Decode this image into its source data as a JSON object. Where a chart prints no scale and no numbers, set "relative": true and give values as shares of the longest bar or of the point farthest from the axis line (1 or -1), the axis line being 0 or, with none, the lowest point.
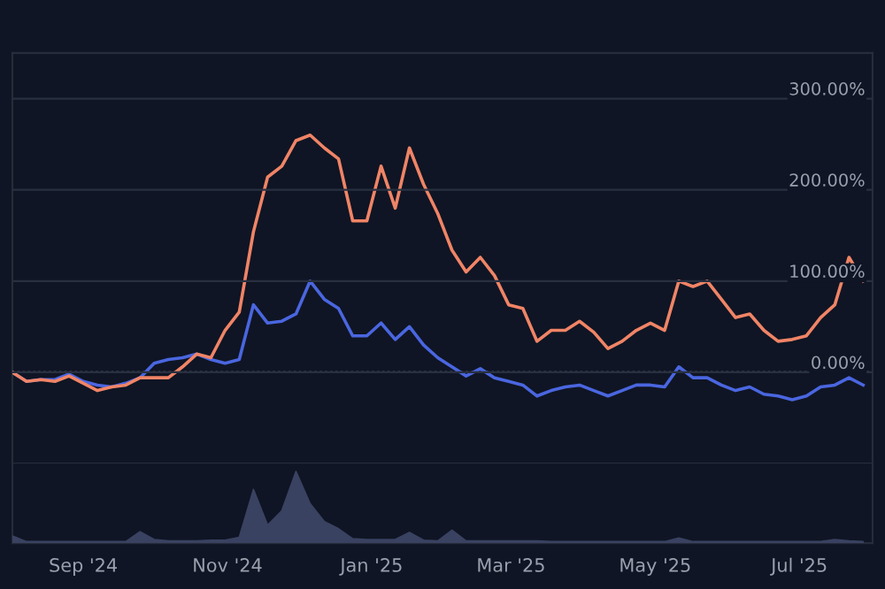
{
  "chart_data": [
    {
      "type": "line",
      "xlim": [
        "2024-08-02",
        "2025-08-01"
      ],
      "ylim": [
        -100,
        350
      ],
      "yticks": [
        {
          "value": 0,
          "label": "0.00%"
        },
        {
          "value": 100,
          "label": "100.00%"
        },
        {
          "value": 200,
          "label": "200.00%"
        },
        {
          "value": 300,
          "label": "300.00%"
        }
      ],
      "tick_labels": "y",
      "grid": "y",
      "ref_lines": [
        {
          "axis": "y",
          "value": 0,
          "label": null,
          "color": "#9aa0ad",
          "line_style": "dotted"
        }
      ],
      "x": [
        "2024-08-02",
        "2024-08-08",
        "2024-08-14",
        "2024-08-20",
        "2024-08-26",
        "2024-09-01",
        "2024-09-07",
        "2024-09-13",
        "2024-09-19",
        "2024-09-25",
        "2024-10-01",
        "2024-10-07",
        "2024-10-13",
        "2024-10-19",
        "2024-10-25",
        "2024-10-31",
        "2024-11-06",
        "2024-11-12",
        "2024-11-18",
        "2024-11-24",
        "2024-11-30",
        "2024-12-06",
        "2024-12-12",
        "2024-12-18",
        "2024-12-24",
        "2024-12-30",
        "2025-01-05",
        "2025-01-11",
        "2025-01-17",
        "2025-01-23",
        "2025-01-29",
        "2025-02-04",
        "2025-02-10",
        "2025-02-16",
        "2025-02-22",
        "2025-02-28",
        "2025-03-06",
        "2025-03-12",
        "2025-03-18",
        "2025-03-24",
        "2025-03-30",
        "2025-04-05",
        "2025-04-11",
        "2025-04-17",
        "2025-04-23",
        "2025-04-29",
        "2025-05-05",
        "2025-05-11",
        "2025-05-17",
        "2025-05-23",
        "2025-05-29",
        "2025-06-04",
        "2025-06-10",
        "2025-06-16",
        "2025-06-22",
        "2025-06-28",
        "2025-07-04",
        "2025-07-10",
        "2025-07-16",
        "2025-07-22",
        "2025-07-28"
      ],
      "series": [
        {
          "color": "#4a66e0",
          "values": [
            0,
            -10,
            -8,
            -8,
            -2,
            -10,
            -14,
            -16,
            -12,
            -6,
            10,
            14,
            16,
            20,
            14,
            10,
            14,
            74,
            54,
            56,
            64,
            100,
            80,
            70,
            40,
            40,
            54,
            36,
            50,
            30,
            16,
            6,
            -4,
            4,
            -6,
            -10,
            -14,
            -26,
            -20,
            -16,
            -14,
            -20,
            -26,
            -20,
            -14,
            -14,
            -16,
            6,
            -6,
            -6,
            -14,
            -20,
            -16,
            -24,
            -26,
            -30,
            -26,
            -16,
            -14,
            -6,
            -14
          ]
        },
        {
          "color": "#f08466",
          "values": [
            0,
            -10,
            -8,
            -10,
            -4,
            -12,
            -20,
            -16,
            -14,
            -6,
            -6,
            -6,
            6,
            20,
            16,
            46,
            66,
            154,
            214,
            226,
            254,
            260,
            246,
            234,
            166,
            166,
            226,
            180,
            246,
            206,
            174,
            134,
            110,
            126,
            106,
            74,
            70,
            34,
            46,
            46,
            56,
            44,
            26,
            34,
            46,
            54,
            46,
            100,
            94,
            100,
            80,
            60,
            64,
            46,
            34,
            36,
            40,
            60,
            74,
            126,
            100
          ]
        }
      ]
    },
    {
      "type": "area",
      "relative": true,
      "tick_labels": "x",
      "grid": false,
      "xlim": [
        "2024-08-02",
        "2025-08-01"
      ],
      "xticks": [
        {
          "value": "2024-09-01",
          "label": "Sep '24"
        },
        {
          "value": "2024-11-01",
          "label": "Nov '24"
        },
        {
          "value": "2025-01-01",
          "label": "Jan '25"
        },
        {
          "value": "2025-03-01",
          "label": "Mar '25"
        },
        {
          "value": "2025-05-01",
          "label": "May '25"
        },
        {
          "value": "2025-07-01",
          "label": "Jul '25"
        }
      ],
      "x": [
        "2024-08-02",
        "2024-08-08",
        "2024-08-14",
        "2024-08-20",
        "2024-08-26",
        "2024-09-01",
        "2024-09-07",
        "2024-09-13",
        "2024-09-19",
        "2024-09-25",
        "2024-10-01",
        "2024-10-07",
        "2024-10-13",
        "2024-10-19",
        "2024-10-25",
        "2024-10-31",
        "2024-11-06",
        "2024-11-12",
        "2024-11-18",
        "2024-11-24",
        "2024-11-30",
        "2024-12-06",
        "2024-12-12",
        "2024-12-18",
        "2024-12-24",
        "2024-12-30",
        "2025-01-05",
        "2025-01-11",
        "2025-01-17",
        "2025-01-23",
        "2025-01-29",
        "2025-02-04",
        "2025-02-10",
        "2025-02-16",
        "2025-02-22",
        "2025-02-28",
        "2025-03-06",
        "2025-03-12",
        "2025-03-18",
        "2025-03-24",
        "2025-03-30",
        "2025-04-05",
        "2025-04-11",
        "2025-04-17",
        "2025-04-23",
        "2025-04-29",
        "2025-05-05",
        "2025-05-11",
        "2025-05-17",
        "2025-05-23",
        "2025-05-29",
        "2025-06-04",
        "2025-06-10",
        "2025-06-16",
        "2025-06-22",
        "2025-06-28",
        "2025-07-04",
        "2025-07-10",
        "2025-07-16",
        "2025-07-22",
        "2025-07-28"
      ],
      "series": [
        {
          "color": "#3a4262",
          "values": [
            0.1,
            0.02,
            0.02,
            0.02,
            0.02,
            0.02,
            0.02,
            0.02,
            0.02,
            0.16,
            0.05,
            0.03,
            0.03,
            0.03,
            0.04,
            0.04,
            0.08,
            0.75,
            0.25,
            0.45,
            1.0,
            0.55,
            0.3,
            0.2,
            0.06,
            0.05,
            0.05,
            0.05,
            0.15,
            0.04,
            0.03,
            0.18,
            0.03,
            0.03,
            0.03,
            0.03,
            0.03,
            0.03,
            0.02,
            0.02,
            0.02,
            0.02,
            0.02,
            0.02,
            0.02,
            0.02,
            0.02,
            0.07,
            0.02,
            0.02,
            0.02,
            0.02,
            0.02,
            0.02,
            0.02,
            0.02,
            0.02,
            0.02,
            0.05,
            0.03,
            0.02
          ]
        }
      ]
    }
  ]
}
